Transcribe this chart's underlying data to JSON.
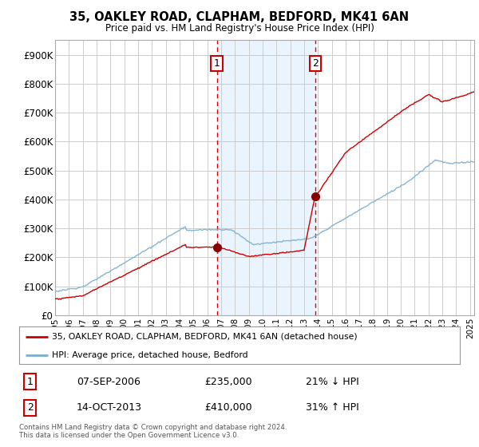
{
  "title": "35, OAKLEY ROAD, CLAPHAM, BEDFORD, MK41 6AN",
  "subtitle": "Price paid vs. HM Land Registry's House Price Index (HPI)",
  "ylabel_ticks": [
    "£0",
    "£100K",
    "£200K",
    "£300K",
    "£400K",
    "£500K",
    "£600K",
    "£700K",
    "£800K",
    "£900K"
  ],
  "ytick_values": [
    0,
    100000,
    200000,
    300000,
    400000,
    500000,
    600000,
    700000,
    800000,
    900000
  ],
  "ylim": [
    0,
    950000
  ],
  "xlim_start": 1995.0,
  "xlim_end": 2025.3,
  "sale1_x": 2006.69,
  "sale1_y": 235000,
  "sale1_label": "1",
  "sale2_x": 2013.79,
  "sale2_y": 410000,
  "sale2_label": "2",
  "vline1_x": 2006.69,
  "vline2_x": 2013.79,
  "red_line_color": "#cc0000",
  "blue_line_color": "#7aadcf",
  "blue_fill_color": "#ddeeff",
  "vline_color": "#dd0000",
  "dot_color": "#880000",
  "background_color": "#ffffff",
  "grid_color": "#cccccc",
  "legend_line1": "35, OAKLEY ROAD, CLAPHAM, BEDFORD, MK41 6AN (detached house)",
  "legend_line2": "HPI: Average price, detached house, Bedford",
  "table_row1_num": "1",
  "table_row1_date": "07-SEP-2006",
  "table_row1_price": "£235,000",
  "table_row1_hpi": "21% ↓ HPI",
  "table_row2_num": "2",
  "table_row2_date": "14-OCT-2013",
  "table_row2_price": "£410,000",
  "table_row2_hpi": "31% ↑ HPI",
  "footnote": "Contains HM Land Registry data © Crown copyright and database right 2024.\nThis data is licensed under the Open Government Licence v3.0.",
  "xtick_years": [
    1995,
    1996,
    1997,
    1998,
    1999,
    2000,
    2001,
    2002,
    2003,
    2004,
    2005,
    2006,
    2007,
    2008,
    2009,
    2010,
    2011,
    2012,
    2013,
    2014,
    2015,
    2016,
    2017,
    2018,
    2019,
    2020,
    2021,
    2022,
    2023,
    2024,
    2025
  ]
}
